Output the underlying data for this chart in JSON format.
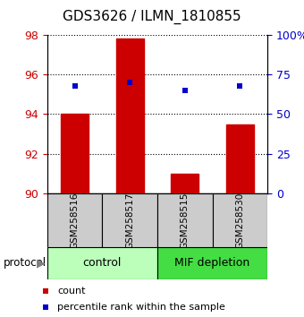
{
  "title": "GDS3626 / ILMN_1810855",
  "samples": [
    "GSM258516",
    "GSM258517",
    "GSM258515",
    "GSM258530"
  ],
  "bar_values": [
    94.0,
    97.8,
    91.0,
    93.5
  ],
  "bar_bottom": 90,
  "percentile_values": [
    68.0,
    70.0,
    65.0,
    68.0
  ],
  "ylim_left": [
    90,
    98
  ],
  "ylim_right": [
    0,
    100
  ],
  "yticks_left": [
    90,
    92,
    94,
    96,
    98
  ],
  "yticks_right": [
    0,
    25,
    50,
    75,
    100
  ],
  "ytick_labels_right": [
    "0",
    "25",
    "50",
    "75",
    "100%"
  ],
  "bar_color": "#cc0000",
  "dot_color": "#0000cc",
  "bar_width": 0.5,
  "groups": [
    {
      "label": "control",
      "samples": [
        0,
        1
      ],
      "color": "#bbffbb"
    },
    {
      "label": "MIF depletion",
      "samples": [
        2,
        3
      ],
      "color": "#44dd44"
    }
  ],
  "tick_label_color_left": "#cc0000",
  "tick_label_color_right": "#0000cc",
  "legend_count_color": "#cc0000",
  "legend_pct_color": "#0000cc",
  "title_fontsize": 11
}
